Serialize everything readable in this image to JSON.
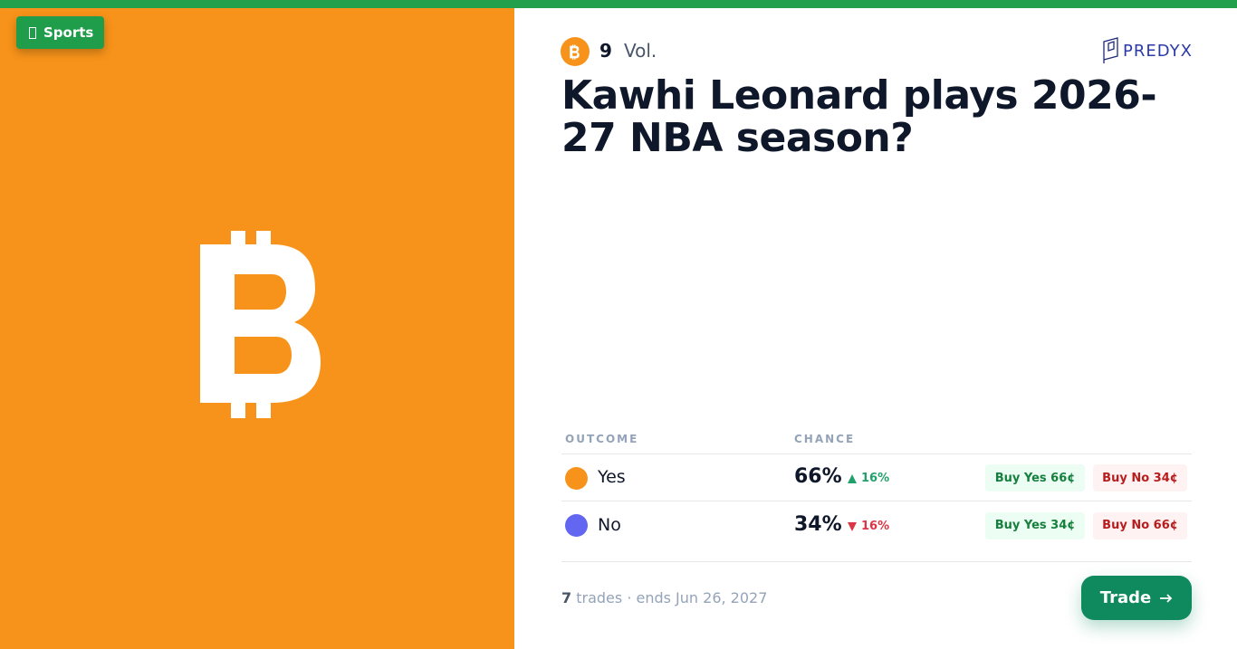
{
  "badge": {
    "label": "Sports"
  },
  "market": {
    "volume": "9",
    "volume_label": "Vol.",
    "brand": "PREDYX",
    "title": "Kawhi Leonard plays 2026-27 NBA season?"
  },
  "table": {
    "headers": [
      "OUTCOME",
      "CHANCE"
    ],
    "rows": [
      {
        "outcome": "Yes",
        "chance": "66%",
        "change": "16%",
        "direction": "up",
        "buy_yes": "Buy Yes 66¢",
        "buy_no": "Buy No 34¢"
      },
      {
        "outcome": "No",
        "chance": "34%",
        "change": "16%",
        "direction": "down",
        "buy_yes": "Buy Yes 34¢",
        "buy_no": "Buy No 66¢"
      }
    ]
  },
  "footer": {
    "trades": "7",
    "details": "trades · ends Jun 26, 2027",
    "button": "Trade"
  }
}
